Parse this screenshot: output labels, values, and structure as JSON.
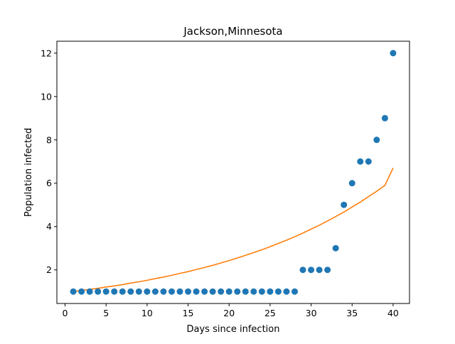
{
  "chart_data": {
    "type": "scatter",
    "title": "Jackson,Minnesota",
    "xlabel": "Days since infection",
    "ylabel": "Population infected",
    "xlim": [
      -1,
      42
    ],
    "ylim": [
      0.45,
      12.55
    ],
    "xticks": [
      0,
      5,
      10,
      15,
      20,
      25,
      30,
      35,
      40
    ],
    "yticks": [
      2,
      4,
      6,
      8,
      10,
      12
    ],
    "grid": false,
    "series": [
      {
        "kind": "scatter",
        "color": "#1f77b4",
        "x": [
          1,
          2,
          3,
          4,
          5,
          6,
          7,
          8,
          9,
          10,
          11,
          12,
          13,
          14,
          15,
          16,
          17,
          18,
          19,
          20,
          21,
          22,
          23,
          24,
          25,
          26,
          27,
          28,
          29,
          30,
          31,
          32,
          33,
          34,
          35,
          36,
          37,
          38,
          39,
          40
        ],
        "y": [
          1,
          1,
          1,
          1,
          1,
          1,
          1,
          1,
          1,
          1,
          1,
          1,
          1,
          1,
          1,
          1,
          1,
          1,
          1,
          1,
          1,
          1,
          1,
          1,
          1,
          1,
          1,
          1,
          2,
          2,
          2,
          2,
          3,
          5,
          6,
          7,
          7,
          8,
          9,
          12
        ]
      },
      {
        "kind": "line",
        "color": "#ff7f0e",
        "x": [
          1,
          2,
          3,
          4,
          5,
          6,
          7,
          8,
          9,
          10,
          11,
          12,
          13,
          14,
          15,
          16,
          17,
          18,
          19,
          20,
          21,
          22,
          23,
          24,
          25,
          26,
          27,
          28,
          29,
          30,
          31,
          32,
          33,
          34,
          35,
          36,
          37,
          38,
          39,
          40
        ],
        "y": [
          1.0,
          1.05,
          1.1,
          1.15,
          1.21,
          1.26,
          1.32,
          1.39,
          1.45,
          1.52,
          1.6,
          1.67,
          1.75,
          1.84,
          1.92,
          2.02,
          2.11,
          2.21,
          2.32,
          2.43,
          2.55,
          2.67,
          2.8,
          2.93,
          3.07,
          3.22,
          3.37,
          3.53,
          3.7,
          3.88,
          4.06,
          4.26,
          4.46,
          4.67,
          4.9,
          5.13,
          5.38,
          5.63,
          5.9,
          6.7
        ]
      }
    ]
  }
}
